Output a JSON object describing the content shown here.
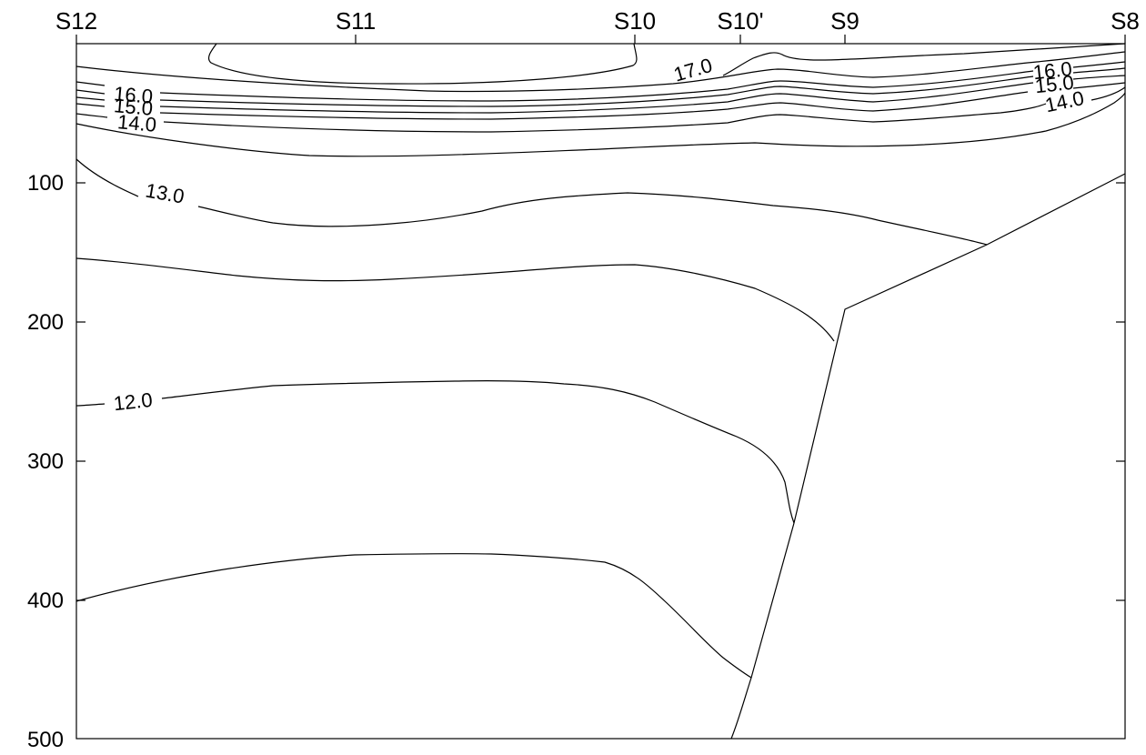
{
  "chart_data": {
    "type": "contour",
    "title": "",
    "xlabel": "",
    "ylabel": "",
    "stations": [
      "S12",
      "S11",
      "S10",
      "S10'",
      "S9",
      "S8"
    ],
    "y_ticks": [
      100,
      200,
      300,
      400,
      500
    ],
    "ylim": [
      0,
      500
    ],
    "y_inverted": true,
    "contour_labels": [
      "17.0",
      "16.0",
      "15.0",
      "14.0",
      "13.0",
      "12.0",
      "16.0",
      "15.0",
      "14.0"
    ],
    "contour_levels": [
      17.0,
      16.5,
      16.0,
      15.5,
      15.0,
      14.5,
      14.0,
      13.5,
      13.0,
      12.5,
      12.0,
      11.5
    ],
    "bottom_boundary": true
  }
}
